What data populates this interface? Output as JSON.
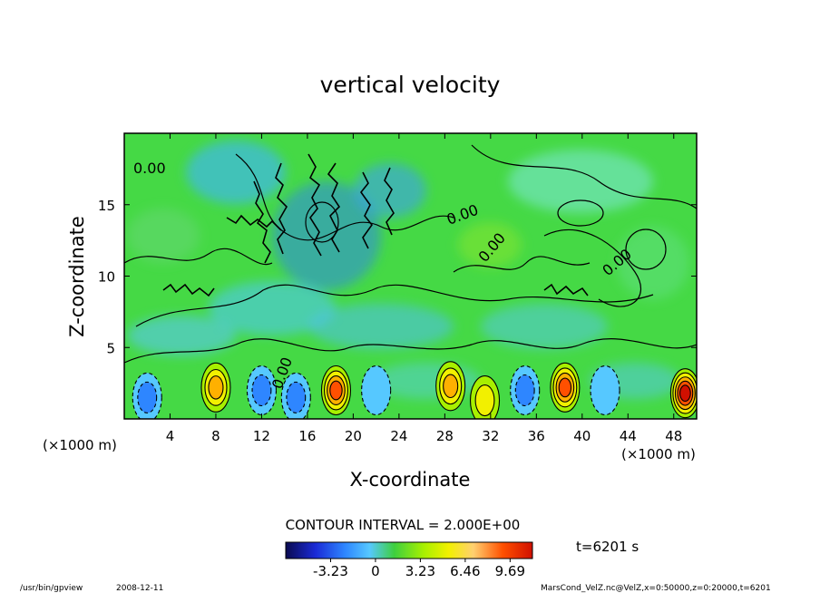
{
  "chart_data": {
    "type": "heatmap",
    "title": "vertical velocity",
    "xlabel": "X-coordinate",
    "ylabel": "Z-coordinate",
    "x_unit_left": "(×1000 m)",
    "x_unit_right": "(×1000 m)",
    "xlim": [
      0,
      50
    ],
    "ylim": [
      0,
      20
    ],
    "x_ticks": [
      4,
      8,
      12,
      16,
      20,
      24,
      28,
      32,
      36,
      40,
      44,
      48
    ],
    "y_ticks": [
      5,
      10,
      15
    ],
    "contour_interval_text": "CONTOUR INTERVAL = 2.000E+00",
    "contour_labels": [
      "0.00",
      "0.00",
      "0.00",
      "0.00",
      "0.00"
    ],
    "colorbar": {
      "ticks": [
        "-3.23",
        "0",
        "3.23",
        "6.46",
        "9.69"
      ],
      "tick_values": [
        -3.23,
        0,
        3.23,
        6.46,
        9.69
      ],
      "range": [
        -6.46,
        11.3
      ],
      "colors": [
        "#0a0a50",
        "#1a2ad6",
        "#2e86ff",
        "#56c8ff",
        "#3ecf3e",
        "#a8f000",
        "#f2f000",
        "#ffb000",
        "#ff5000",
        "#d01000"
      ]
    },
    "cells": [
      {
        "x": 2,
        "z": 1.5,
        "w": -3.2
      },
      {
        "x": 8,
        "z": 2.2,
        "w": 6.4
      },
      {
        "x": 12,
        "z": 2.0,
        "w": -3.0
      },
      {
        "x": 15,
        "z": 1.5,
        "w": -3.2
      },
      {
        "x": 18.5,
        "z": 2.0,
        "w": 8.0
      },
      {
        "x": 22,
        "z": 2.0,
        "w": -2.8
      },
      {
        "x": 28.5,
        "z": 2.3,
        "w": 5.0
      },
      {
        "x": 31.5,
        "z": 1.3,
        "w": 3.0
      },
      {
        "x": 35,
        "z": 2.0,
        "w": -3.0
      },
      {
        "x": 38.5,
        "z": 2.2,
        "w": 7.5
      },
      {
        "x": 42,
        "z": 2.0,
        "w": -2.5
      },
      {
        "x": 49,
        "z": 1.8,
        "w": 9.5
      }
    ],
    "annotation_time": "t=6201 s"
  },
  "footer": {
    "left_program": "/usr/bin/gpview",
    "left_date": "2008-12-11",
    "right_source": "MarsCond_VelZ.nc@VelZ,x=0:50000,z=0:20000,t=6201"
  }
}
